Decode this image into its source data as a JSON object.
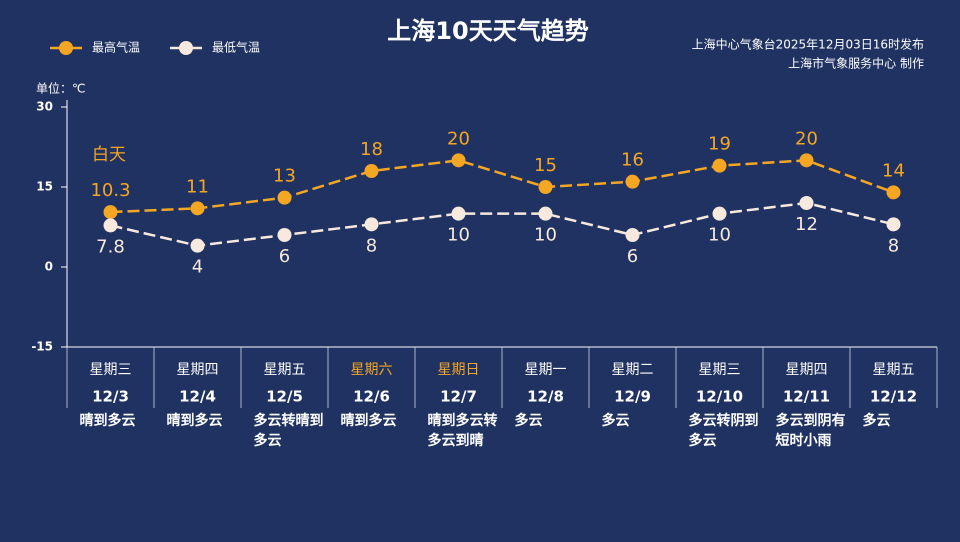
{
  "chart_data": {
    "type": "line",
    "title": "上海10天天气趋势",
    "source": [
      "上海中心气象台2025年12月03日16时发布",
      "上海市气象服务中心 制作"
    ],
    "y_label": "单位：℃",
    "annotation": "白天",
    "categories": [
      "12/3",
      "12/4",
      "12/5",
      "12/6",
      "12/7",
      "12/8",
      "12/9",
      "12/10",
      "12/11",
      "12/12"
    ],
    "weekdays": [
      "星期三",
      "星期四",
      "星期五",
      "星期六",
      "星期日",
      "星期一",
      "星期二",
      "星期三",
      "星期四",
      "星期五"
    ],
    "weekday_colors": [
      "#ffffff",
      "#ffffff",
      "#ffffff",
      "#f5a623",
      "#f5a623",
      "#ffffff",
      "#ffffff",
      "#ffffff",
      "#ffffff",
      "#ffffff"
    ],
    "weather": [
      "晴到多云",
      "晴到多云",
      "多云转晴到多云",
      "晴到多云",
      "晴到多云转多云到晴",
      "多云",
      "多云",
      "多云转阴到多云",
      "多云到阴有短时小雨",
      "多云"
    ],
    "series": [
      {
        "name": "最高气温",
        "color": "#f5a623",
        "values": [
          10.3,
          11,
          13,
          18,
          20,
          15,
          16,
          19,
          20,
          14
        ]
      },
      {
        "name": "最低气温",
        "color": "#f7e9dd",
        "values": [
          7.8,
          4,
          6,
          8,
          10,
          10,
          6,
          10,
          12,
          8
        ]
      }
    ],
    "ylim": [
      -15,
      30
    ],
    "yticks": [
      -15,
      0,
      15,
      30
    ],
    "legend": "top-left"
  }
}
